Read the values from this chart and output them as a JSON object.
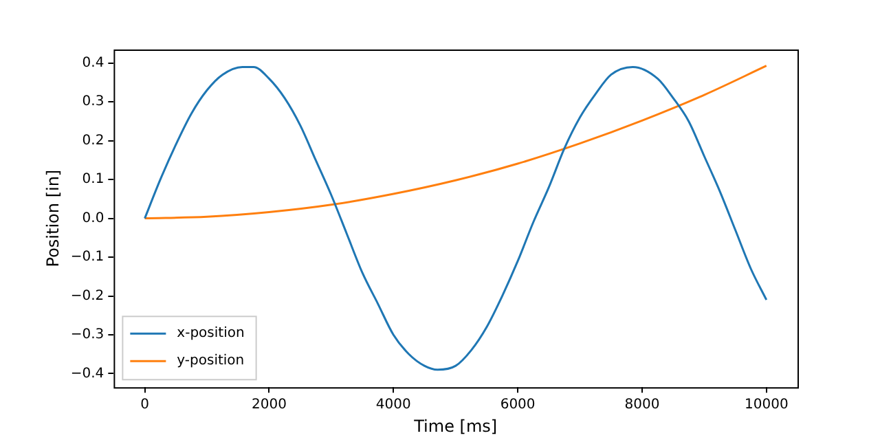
{
  "chart_data": {
    "type": "line",
    "xlabel": "Time [ms]",
    "ylabel": "Position [in]",
    "xlim": [
      -500,
      10500
    ],
    "ylim": [
      -0.435,
      0.435
    ],
    "xticks": [
      0,
      2000,
      4000,
      6000,
      8000,
      10000
    ],
    "yticks": [
      -0.4,
      -0.3,
      -0.2,
      -0.1,
      {
        "value": 0,
        "label": "0.0"
      },
      0.1,
      0.2,
      0.3,
      0.4
    ],
    "grid": false,
    "legend": "bottom left",
    "marker": "none",
    "line_style": "solid",
    "series": [
      {
        "name": "x-position",
        "color": "#1f77b4",
        "x": [
          0,
          250,
          500,
          750,
          1000,
          1250,
          1570,
          1750,
          2000,
          2250,
          2500,
          2750,
          3000,
          3250,
          3500,
          3750,
          4000,
          4250,
          4500,
          4710,
          5000,
          5250,
          5500,
          5750,
          6000,
          6250,
          6500,
          6750,
          7000,
          7250,
          7500,
          7850,
          8250,
          8500,
          8750,
          9000,
          9250,
          9500,
          9750,
          10000
        ],
        "values": [
          0,
          0.1,
          0.19,
          0.27,
          0.33,
          0.37,
          0.39,
          0.39,
          0.36,
          0.31,
          0.24,
          0.15,
          0.06,
          -0.04,
          -0.14,
          -0.22,
          -0.3,
          -0.35,
          -0.38,
          -0.39,
          -0.38,
          -0.34,
          -0.28,
          -0.2,
          -0.11,
          -0.01,
          0.08,
          0.18,
          0.26,
          0.32,
          0.37,
          0.39,
          0.36,
          0.31,
          0.25,
          0.16,
          0.07,
          -0.03,
          -0.13,
          -0.21
        ]
      },
      {
        "name": "y-position",
        "color": "#ff7f0e",
        "x": [
          0,
          1000,
          2000,
          3000,
          4000,
          5000,
          6000,
          7000,
          8000,
          9000,
          10000
        ],
        "values": [
          0,
          0.004,
          0.016,
          0.035,
          0.063,
          0.098,
          0.141,
          0.193,
          0.252,
          0.318,
          0.393
        ]
      }
    ]
  }
}
